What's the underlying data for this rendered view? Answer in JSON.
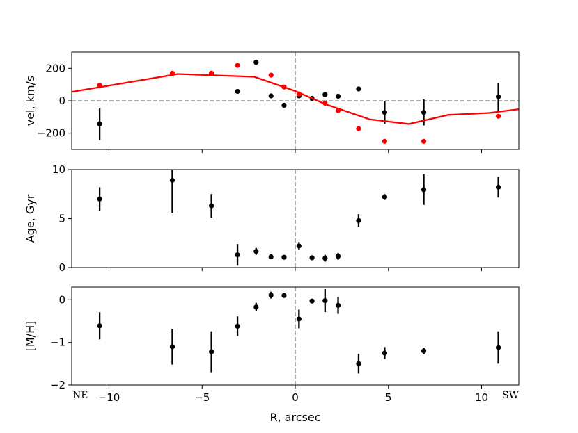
{
  "chart_data": [
    {
      "type": "scatter",
      "panel": "velocity",
      "ylabel": "vel, km/s",
      "xlim": [
        -12,
        12
      ],
      "ylim": [
        -300,
        300
      ],
      "yticks": [
        -200,
        0,
        200
      ],
      "ytick_labels": [
        "−200",
        "0",
        "200"
      ],
      "hline": 0,
      "vline": 0,
      "series": [
        {
          "color": "#000000",
          "style": "points-with-errorbars",
          "points": [
            {
              "x": -10.5,
              "y": -143,
              "err": 100
            },
            {
              "x": -3.1,
              "y": 58,
              "err": 8
            },
            {
              "x": -2.1,
              "y": 237,
              "err": 0
            },
            {
              "x": -1.3,
              "y": 30,
              "err": 0
            },
            {
              "x": -0.6,
              "y": -28,
              "err": 0
            },
            {
              "x": 0.2,
              "y": 30,
              "err": 0
            },
            {
              "x": 0.9,
              "y": 15,
              "err": 0
            },
            {
              "x": 1.6,
              "y": 38,
              "err": 0
            },
            {
              "x": 2.3,
              "y": 28,
              "err": 0
            },
            {
              "x": 3.4,
              "y": 73,
              "err": 0
            },
            {
              "x": 4.8,
              "y": -72,
              "err": 70
            },
            {
              "x": 6.9,
              "y": -72,
              "err": 80
            },
            {
              "x": 10.9,
              "y": 25,
              "err": 85
            }
          ]
        },
        {
          "color": "#ff0000",
          "style": "points",
          "points": [
            {
              "x": -10.5,
              "y": 95
            },
            {
              "x": -6.6,
              "y": 170
            },
            {
              "x": -4.5,
              "y": 170
            },
            {
              "x": -3.1,
              "y": 218
            },
            {
              "x": -1.3,
              "y": 158
            },
            {
              "x": -0.6,
              "y": 85
            },
            {
              "x": 0.2,
              "y": 42
            },
            {
              "x": 1.6,
              "y": -15
            },
            {
              "x": 2.3,
              "y": -60
            },
            {
              "x": 3.4,
              "y": -172
            },
            {
              "x": 4.8,
              "y": -250
            },
            {
              "x": 6.9,
              "y": -250
            },
            {
              "x": 10.9,
              "y": -95
            }
          ]
        },
        {
          "color": "#ff0000",
          "style": "line",
          "points": [
            {
              "x": -12.0,
              "y": 55
            },
            {
              "x": -6.3,
              "y": 165
            },
            {
              "x": -2.2,
              "y": 148
            },
            {
              "x": 0.0,
              "y": 60
            },
            {
              "x": 1.6,
              "y": -20
            },
            {
              "x": 4.0,
              "y": -115
            },
            {
              "x": 6.1,
              "y": -143
            },
            {
              "x": 8.2,
              "y": -87
            },
            {
              "x": 10.4,
              "y": -75
            },
            {
              "x": 12.0,
              "y": -52
            }
          ]
        }
      ]
    },
    {
      "type": "scatter",
      "panel": "age",
      "ylabel": "Age, Gyr",
      "xlim": [
        -12,
        12
      ],
      "ylim": [
        0,
        10
      ],
      "yticks": [
        0,
        5,
        10
      ],
      "ytick_labels": [
        "0",
        "5",
        "10"
      ],
      "vline": 0,
      "series": [
        {
          "color": "#000000",
          "style": "points-with-errorbars",
          "points": [
            {
              "x": -10.5,
              "y": 7.0,
              "err": 1.2
            },
            {
              "x": -6.6,
              "y": 8.9,
              "err": 3.3
            },
            {
              "x": -4.5,
              "y": 6.3,
              "err": 1.2
            },
            {
              "x": -3.1,
              "y": 1.3,
              "err": 1.1
            },
            {
              "x": -2.1,
              "y": 1.65,
              "err": 0.35
            },
            {
              "x": -1.3,
              "y": 1.1,
              "err": 0.15
            },
            {
              "x": -0.6,
              "y": 1.05,
              "err": 0.15
            },
            {
              "x": 0.2,
              "y": 2.2,
              "err": 0.4
            },
            {
              "x": 0.9,
              "y": 1.0,
              "err": 0.15
            },
            {
              "x": 1.6,
              "y": 0.95,
              "err": 0.35
            },
            {
              "x": 2.3,
              "y": 1.15,
              "err": 0.35
            },
            {
              "x": 3.4,
              "y": 4.8,
              "err": 0.65
            },
            {
              "x": 4.8,
              "y": 7.2,
              "err": 0.3
            },
            {
              "x": 6.9,
              "y": 7.95,
              "err": 1.55
            },
            {
              "x": 10.9,
              "y": 8.2,
              "err": 1.05
            }
          ]
        }
      ]
    },
    {
      "type": "scatter",
      "panel": "metallicity",
      "ylabel": "[M/H]",
      "xlabel": "R, arcsec",
      "xlim": [
        -12,
        12
      ],
      "ylim": [
        -2,
        0.3
      ],
      "yticks": [
        -2,
        -1,
        0
      ],
      "ytick_labels": [
        "−2",
        "−1",
        "0"
      ],
      "xticks": [
        -10,
        -5,
        0,
        5,
        10
      ],
      "xtick_labels": [
        "−10",
        "−5",
        "0",
        "5",
        "10"
      ],
      "vline": 0,
      "series": [
        {
          "color": "#000000",
          "style": "points-with-errorbars",
          "points": [
            {
              "x": -10.5,
              "y": -0.61,
              "err": 0.32
            },
            {
              "x": -6.6,
              "y": -1.1,
              "err": 0.42
            },
            {
              "x": -4.5,
              "y": -1.22,
              "err": 0.48
            },
            {
              "x": -3.1,
              "y": -0.62,
              "err": 0.23
            },
            {
              "x": -2.1,
              "y": -0.17,
              "err": 0.1
            },
            {
              "x": -1.3,
              "y": 0.11,
              "err": 0.08
            },
            {
              "x": -0.6,
              "y": 0.1,
              "err": 0.05
            },
            {
              "x": 0.2,
              "y": -0.45,
              "err": 0.22
            },
            {
              "x": 0.9,
              "y": -0.03,
              "err": 0.04
            },
            {
              "x": 1.6,
              "y": -0.02,
              "err": 0.27
            },
            {
              "x": 2.3,
              "y": -0.13,
              "err": 0.2
            },
            {
              "x": 3.4,
              "y": -1.5,
              "err": 0.23
            },
            {
              "x": 4.8,
              "y": -1.25,
              "err": 0.14
            },
            {
              "x": 6.9,
              "y": -1.2,
              "err": 0.08
            },
            {
              "x": 10.9,
              "y": -1.12,
              "err": 0.38
            }
          ]
        }
      ]
    }
  ],
  "corner_labels": {
    "left": "NE",
    "right": "SW"
  }
}
